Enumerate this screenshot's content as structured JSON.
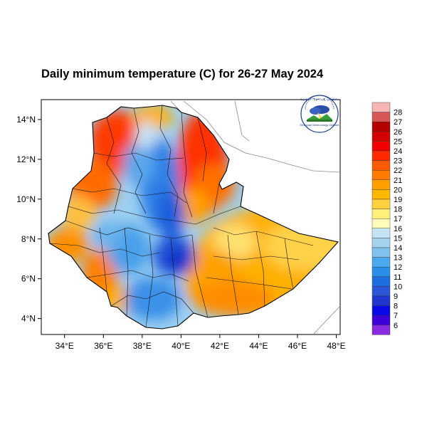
{
  "title": "Daily minimum temperature (C) for 26-27 May 2024",
  "logo": {
    "name": "Ethiopian Meteorology Institute emblem",
    "arc_text": "የኢትዮጵያ ሜቲዎሮሎጂ ኢንስቲትዩት",
    "caption": "Ethiopian Meteorology Institute"
  },
  "axes": {
    "lon_ticks": [
      "34°E",
      "36°E",
      "38°E",
      "40°E",
      "42°E",
      "44°E",
      "46°E",
      "48°E"
    ],
    "lat_ticks": [
      "4°N",
      "6°N",
      "8°N",
      "10°N",
      "12°N",
      "14°N"
    ],
    "lon_values": [
      34,
      36,
      38,
      40,
      42,
      44,
      46,
      48
    ],
    "lat_values": [
      4,
      6,
      8,
      10,
      12,
      14
    ],
    "lon_range": [
      32.8,
      48.2
    ],
    "lat_range": [
      3.2,
      15.0
    ]
  },
  "colorbar": {
    "labels": [
      "28",
      "27",
      "26",
      "25",
      "24",
      "23",
      "22",
      "21",
      "20",
      "19",
      "18",
      "17",
      "16",
      "15",
      "14",
      "13",
      "12",
      "11",
      "10",
      "9",
      "8",
      "7",
      "6"
    ],
    "colors": [
      "#f7b5b5",
      "#d65555",
      "#b40000",
      "#d40000",
      "#f20000",
      "#ff2a00",
      "#ff5a00",
      "#ff7a00",
      "#ffa000",
      "#ffb800",
      "#ffd23d",
      "#fff07a",
      "#fffbb8",
      "#c6e3f4",
      "#a4d2ef",
      "#80c2ee",
      "#4aa9ec",
      "#2a8fe8",
      "#1e6ee2",
      "#2b56d8",
      "#1f36cf",
      "#0a0ae8",
      "#3c00d8",
      "#8a2be2"
    ]
  },
  "colors": {
    "cold": "#1f6fe0",
    "cool": "#8ec8ef",
    "warm": "#ffb000",
    "hot": "#f02000"
  }
}
